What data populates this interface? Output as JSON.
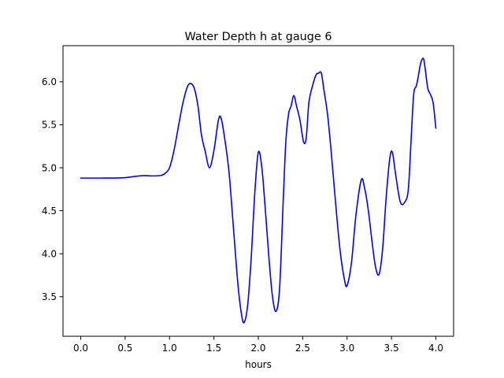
{
  "chart_data": {
    "type": "line",
    "title": "Water Depth h at gauge 6",
    "xlabel": "hours",
    "ylabel": "",
    "xlim": [
      -0.2,
      4.2
    ],
    "ylim": [
      3.04,
      6.42
    ],
    "xticks": [
      0.0,
      0.5,
      1.0,
      1.5,
      2.0,
      2.5,
      3.0,
      3.5,
      4.0
    ],
    "xtick_labels": [
      "0.0",
      "0.5",
      "1.0",
      "1.5",
      "2.0",
      "2.5",
      "3.0",
      "3.5",
      "4.0"
    ],
    "yticks": [
      3.5,
      4.0,
      4.5,
      5.0,
      5.5,
      6.0
    ],
    "ytick_labels": [
      "3.5",
      "4.0",
      "4.5",
      "5.0",
      "5.5",
      "6.0"
    ],
    "grid": false,
    "series": [
      {
        "color": "#0000ff",
        "x": [
          0.0,
          0.2,
          0.4,
          0.5,
          0.6,
          0.7,
          0.8,
          0.9,
          0.95,
          1.0,
          1.05,
          1.1,
          1.15,
          1.2,
          1.24,
          1.28,
          1.32,
          1.36,
          1.4,
          1.45,
          1.5,
          1.55,
          1.58,
          1.62,
          1.67,
          1.72,
          1.77,
          1.81,
          1.84,
          1.88,
          1.92,
          1.96,
          2.0,
          2.04,
          2.08,
          2.12,
          2.16,
          2.2,
          2.24,
          2.28,
          2.31,
          2.34,
          2.37,
          2.4,
          2.43,
          2.47,
          2.51,
          2.54,
          2.57,
          2.61,
          2.65,
          2.68,
          2.71,
          2.74,
          2.78,
          2.82,
          2.87,
          2.92,
          2.97,
          3.0,
          3.05,
          3.1,
          3.16,
          3.2,
          3.24,
          3.28,
          3.32,
          3.36,
          3.4,
          3.44,
          3.48,
          3.51,
          3.55,
          3.6,
          3.65,
          3.69,
          3.72,
          3.75,
          3.78,
          3.8,
          3.83,
          3.86,
          3.88,
          3.91,
          3.94,
          3.97,
          4.0
        ],
        "y": [
          4.88,
          4.88,
          4.881,
          4.885,
          4.898,
          4.908,
          4.905,
          4.91,
          4.935,
          5.0,
          5.2,
          5.48,
          5.75,
          5.94,
          5.98,
          5.92,
          5.72,
          5.38,
          5.2,
          5.0,
          5.2,
          5.55,
          5.58,
          5.35,
          4.95,
          4.3,
          3.65,
          3.3,
          3.2,
          3.4,
          3.95,
          4.7,
          5.18,
          5.0,
          4.5,
          3.95,
          3.5,
          3.33,
          3.6,
          4.6,
          5.3,
          5.62,
          5.72,
          5.84,
          5.72,
          5.55,
          5.3,
          5.35,
          5.76,
          5.95,
          6.08,
          6.1,
          6.1,
          5.9,
          5.62,
          5.2,
          4.6,
          4.05,
          3.7,
          3.63,
          3.9,
          4.45,
          4.86,
          4.75,
          4.5,
          4.15,
          3.85,
          3.76,
          4.05,
          4.65,
          5.1,
          5.18,
          4.9,
          4.6,
          4.6,
          4.75,
          5.3,
          5.85,
          5.95,
          6.05,
          6.22,
          6.27,
          6.15,
          5.92,
          5.85,
          5.75,
          5.46
        ]
      }
    ]
  }
}
